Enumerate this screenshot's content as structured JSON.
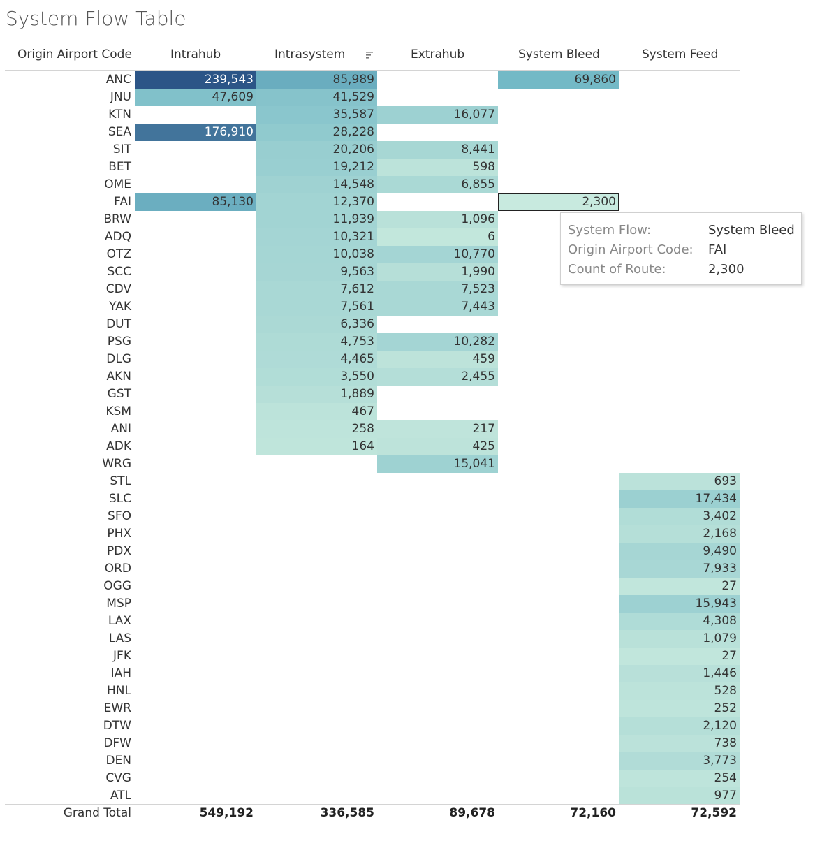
{
  "title": "System Flow Table",
  "columns": {
    "row_header": "Origin Airport Code",
    "c1": "Intrahub",
    "c2": "Intrasystem",
    "c3": "Extrahub",
    "c4": "System Bleed",
    "c5": "System Feed"
  },
  "sort_icon": "sort-descending-icon",
  "tooltip": {
    "k1": "System Flow:",
    "v1": "System Bleed",
    "k2": "Origin Airport Code:",
    "v2": "FAI",
    "k3": "Count of Route:",
    "v3": "2,300"
  },
  "chart_data": {
    "type": "table",
    "title": "System Flow Table",
    "row_header": "Origin Airport Code",
    "columns": [
      "Intrahub",
      "Intrasystem",
      "Extrahub",
      "System Bleed",
      "System Feed"
    ],
    "rows": [
      {
        "code": "ANC",
        "values": [
          239543,
          85989,
          null,
          69860,
          null
        ]
      },
      {
        "code": "JNU",
        "values": [
          47609,
          41529,
          null,
          null,
          null
        ]
      },
      {
        "code": "KTN",
        "values": [
          null,
          35587,
          16077,
          null,
          null
        ]
      },
      {
        "code": "SEA",
        "values": [
          176910,
          28228,
          null,
          null,
          null
        ]
      },
      {
        "code": "SIT",
        "values": [
          null,
          20206,
          8441,
          null,
          null
        ]
      },
      {
        "code": "BET",
        "values": [
          null,
          19212,
          598,
          null,
          null
        ]
      },
      {
        "code": "OME",
        "values": [
          null,
          14548,
          6855,
          null,
          null
        ]
      },
      {
        "code": "FAI",
        "values": [
          85130,
          12370,
          null,
          2300,
          null
        ]
      },
      {
        "code": "BRW",
        "values": [
          null,
          11939,
          1096,
          null,
          null
        ]
      },
      {
        "code": "ADQ",
        "values": [
          null,
          10321,
          6,
          null,
          null
        ]
      },
      {
        "code": "OTZ",
        "values": [
          null,
          10038,
          10770,
          null,
          null
        ]
      },
      {
        "code": "SCC",
        "values": [
          null,
          9563,
          1990,
          null,
          null
        ]
      },
      {
        "code": "CDV",
        "values": [
          null,
          7612,
          7523,
          null,
          null
        ]
      },
      {
        "code": "YAK",
        "values": [
          null,
          7561,
          7443,
          null,
          null
        ]
      },
      {
        "code": "DUT",
        "values": [
          null,
          6336,
          null,
          null,
          null
        ]
      },
      {
        "code": "PSG",
        "values": [
          null,
          4753,
          10282,
          null,
          null
        ]
      },
      {
        "code": "DLG",
        "values": [
          null,
          4465,
          459,
          null,
          null
        ]
      },
      {
        "code": "AKN",
        "values": [
          null,
          3550,
          2455,
          null,
          null
        ]
      },
      {
        "code": "GST",
        "values": [
          null,
          1889,
          null,
          null,
          null
        ]
      },
      {
        "code": "KSM",
        "values": [
          null,
          467,
          null,
          null,
          null
        ]
      },
      {
        "code": "ANI",
        "values": [
          null,
          258,
          217,
          null,
          null
        ]
      },
      {
        "code": "ADK",
        "values": [
          null,
          164,
          425,
          null,
          null
        ]
      },
      {
        "code": "WRG",
        "values": [
          null,
          null,
          15041,
          null,
          null
        ]
      },
      {
        "code": "STL",
        "values": [
          null,
          null,
          null,
          null,
          693
        ]
      },
      {
        "code": "SLC",
        "values": [
          null,
          null,
          null,
          null,
          17434
        ]
      },
      {
        "code": "SFO",
        "values": [
          null,
          null,
          null,
          null,
          3402
        ]
      },
      {
        "code": "PHX",
        "values": [
          null,
          null,
          null,
          null,
          2168
        ]
      },
      {
        "code": "PDX",
        "values": [
          null,
          null,
          null,
          null,
          9490
        ]
      },
      {
        "code": "ORD",
        "values": [
          null,
          null,
          null,
          null,
          7933
        ]
      },
      {
        "code": "OGG",
        "values": [
          null,
          null,
          null,
          null,
          27
        ]
      },
      {
        "code": "MSP",
        "values": [
          null,
          null,
          null,
          null,
          15943
        ]
      },
      {
        "code": "LAX",
        "values": [
          null,
          null,
          null,
          null,
          4308
        ]
      },
      {
        "code": "LAS",
        "values": [
          null,
          null,
          null,
          null,
          1079
        ]
      },
      {
        "code": "JFK",
        "values": [
          null,
          null,
          null,
          null,
          27
        ]
      },
      {
        "code": "IAH",
        "values": [
          null,
          null,
          null,
          null,
          1446
        ]
      },
      {
        "code": "HNL",
        "values": [
          null,
          null,
          null,
          null,
          528
        ]
      },
      {
        "code": "EWR",
        "values": [
          null,
          null,
          null,
          null,
          252
        ]
      },
      {
        "code": "DTW",
        "values": [
          null,
          null,
          null,
          null,
          2120
        ]
      },
      {
        "code": "DFW",
        "values": [
          null,
          null,
          null,
          null,
          738
        ]
      },
      {
        "code": "DEN",
        "values": [
          null,
          null,
          null,
          null,
          3773
        ]
      },
      {
        "code": "CVG",
        "values": [
          null,
          null,
          null,
          null,
          254
        ]
      },
      {
        "code": "ATL",
        "values": [
          null,
          null,
          null,
          null,
          977
        ]
      }
    ],
    "grand_total_label": "Grand Total",
    "grand_totals": [
      549192,
      336585,
      89678,
      72160,
      72592
    ],
    "selected": {
      "row": "FAI",
      "column": "System Bleed"
    },
    "color_scale": {
      "low": "#c3e7dc",
      "high": "#2c5587"
    }
  }
}
